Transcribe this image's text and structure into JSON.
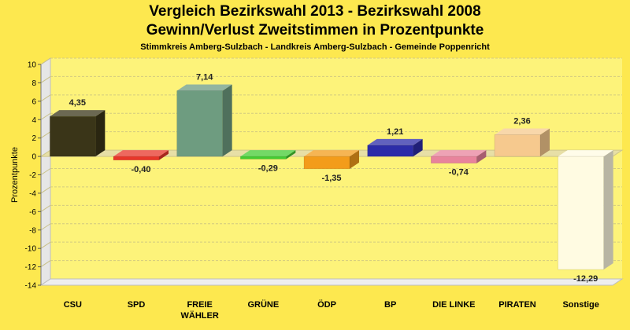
{
  "chart_data": {
    "type": "bar",
    "title": "Vergleich Bezirkswahl 2013 - Bezirkswahl 2008",
    "subtitle": "Gewinn/Verlust Zweitstimmen in Prozentpunkte",
    "caption": "Stimmkreis Amberg-Sulzbach - Landkreis Amberg-Sulzbach - Gemeinde Poppenricht",
    "ylabel": "Prozentpunkte",
    "xlabel": "",
    "ylim": [
      -14,
      10
    ],
    "yticks": [
      10,
      8,
      6,
      4,
      2,
      0,
      -2,
      -4,
      -6,
      -8,
      -10,
      -12,
      -14
    ],
    "categories": [
      "CSU",
      "SPD",
      "FREIE WÄHLER",
      "GRÜNE",
      "ÖDP",
      "BP",
      "DIE LINKE",
      "PIRATEN",
      "Sonstige"
    ],
    "category_lines": [
      [
        "CSU"
      ],
      [
        "SPD"
      ],
      [
        "FREIE",
        "WÄHLER"
      ],
      [
        "GRÜNE"
      ],
      [
        "ÖDP"
      ],
      [
        "BP"
      ],
      [
        "DIE LINKE"
      ],
      [
        "PIRATEN"
      ],
      [
        "Sonstige"
      ]
    ],
    "values": [
      4.35,
      -0.4,
      7.14,
      -0.29,
      -1.35,
      1.21,
      -0.74,
      2.36,
      -12.29
    ],
    "value_labels": [
      "4,35",
      "-0,40",
      "7,14",
      "-0,29",
      "-1,35",
      "1,21",
      "-0,74",
      "2,36",
      "-12,29"
    ],
    "colors": [
      "#3a3518",
      "#e8362a",
      "#6e9c80",
      "#44cc33",
      "#f39c1a",
      "#2c2ca8",
      "#e8839c",
      "#f6c98e",
      "#fffbe2"
    ],
    "grid": true,
    "legend": "none"
  }
}
